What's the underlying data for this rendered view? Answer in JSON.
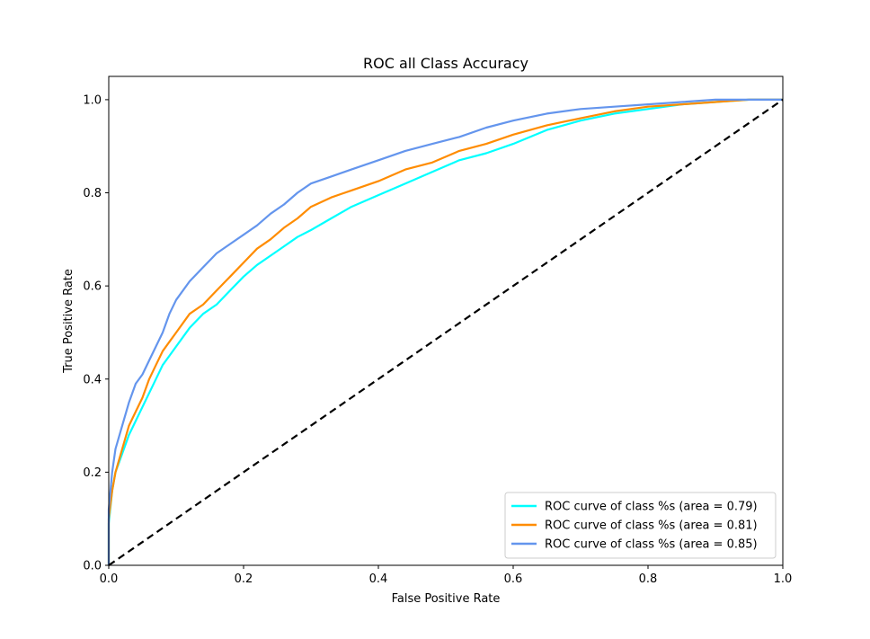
{
  "chart_data": {
    "type": "line",
    "title": "ROC all Class Accuracy",
    "xlabel": "False Positive Rate",
    "ylabel": "True Positive Rate",
    "xlim": [
      0.0,
      1.0
    ],
    "ylim": [
      0.0,
      1.05
    ],
    "xticks": [
      0.0,
      0.2,
      0.4,
      0.6,
      0.8,
      1.0
    ],
    "yticks": [
      0.0,
      0.2,
      0.4,
      0.6,
      0.8,
      1.0
    ],
    "xtick_labels": [
      "0.0",
      "0.2",
      "0.4",
      "0.6",
      "0.8",
      "1.0"
    ],
    "ytick_labels": [
      "0.0",
      "0.2",
      "0.4",
      "0.6",
      "0.8",
      "1.0"
    ],
    "grid": false,
    "legend_position": "lower-right",
    "series": [
      {
        "name": "ROC curve of class %s (area = 0.79)",
        "color": "#00ffff",
        "x": [
          0.0,
          0.0,
          0.005,
          0.01,
          0.02,
          0.03,
          0.04,
          0.05,
          0.06,
          0.07,
          0.08,
          0.09,
          0.1,
          0.12,
          0.14,
          0.16,
          0.18,
          0.2,
          0.22,
          0.24,
          0.26,
          0.28,
          0.3,
          0.33,
          0.36,
          0.4,
          0.44,
          0.48,
          0.52,
          0.56,
          0.6,
          0.65,
          0.7,
          0.75,
          0.8,
          0.85,
          0.9,
          0.95,
          1.0
        ],
        "y": [
          0.0,
          0.09,
          0.16,
          0.2,
          0.24,
          0.28,
          0.31,
          0.34,
          0.37,
          0.4,
          0.43,
          0.45,
          0.47,
          0.51,
          0.54,
          0.56,
          0.59,
          0.62,
          0.645,
          0.665,
          0.685,
          0.705,
          0.72,
          0.745,
          0.77,
          0.795,
          0.82,
          0.845,
          0.87,
          0.885,
          0.905,
          0.935,
          0.955,
          0.97,
          0.98,
          0.99,
          0.995,
          1.0,
          1.0
        ]
      },
      {
        "name": "ROC curve of class %s (area = 0.81)",
        "color": "#ff8c00",
        "x": [
          0.0,
          0.0,
          0.005,
          0.01,
          0.02,
          0.03,
          0.04,
          0.05,
          0.06,
          0.07,
          0.08,
          0.09,
          0.1,
          0.12,
          0.14,
          0.16,
          0.18,
          0.2,
          0.22,
          0.24,
          0.26,
          0.28,
          0.3,
          0.33,
          0.36,
          0.4,
          0.44,
          0.48,
          0.52,
          0.56,
          0.6,
          0.65,
          0.7,
          0.75,
          0.8,
          0.85,
          0.9,
          0.95,
          1.0
        ],
        "y": [
          0.0,
          0.1,
          0.16,
          0.2,
          0.25,
          0.3,
          0.33,
          0.36,
          0.4,
          0.43,
          0.46,
          0.48,
          0.5,
          0.54,
          0.56,
          0.59,
          0.62,
          0.65,
          0.68,
          0.7,
          0.725,
          0.745,
          0.77,
          0.79,
          0.805,
          0.825,
          0.85,
          0.865,
          0.89,
          0.905,
          0.925,
          0.945,
          0.96,
          0.975,
          0.985,
          0.99,
          0.995,
          1.0,
          1.0
        ]
      },
      {
        "name": "ROC curve of class %s (area = 0.85)",
        "color": "#6495ed",
        "x": [
          0.0,
          0.0,
          0.005,
          0.01,
          0.02,
          0.03,
          0.04,
          0.05,
          0.06,
          0.07,
          0.08,
          0.09,
          0.1,
          0.12,
          0.14,
          0.16,
          0.18,
          0.2,
          0.22,
          0.24,
          0.26,
          0.28,
          0.3,
          0.33,
          0.36,
          0.4,
          0.44,
          0.48,
          0.52,
          0.56,
          0.6,
          0.65,
          0.7,
          0.75,
          0.8,
          0.85,
          0.9,
          0.95,
          1.0
        ],
        "y": [
          0.0,
          0.12,
          0.2,
          0.25,
          0.3,
          0.35,
          0.39,
          0.41,
          0.44,
          0.47,
          0.5,
          0.54,
          0.57,
          0.61,
          0.64,
          0.67,
          0.69,
          0.71,
          0.73,
          0.755,
          0.775,
          0.8,
          0.82,
          0.835,
          0.85,
          0.87,
          0.89,
          0.905,
          0.92,
          0.94,
          0.955,
          0.97,
          0.98,
          0.985,
          0.99,
          0.995,
          1.0,
          1.0,
          1.0
        ]
      },
      {
        "name": "",
        "color": "#000000",
        "dashed": true,
        "x": [
          0.0,
          1.0
        ],
        "y": [
          0.0,
          1.0
        ]
      }
    ]
  }
}
